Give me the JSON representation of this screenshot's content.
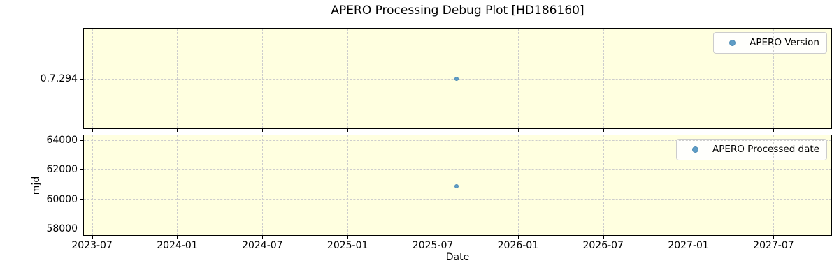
{
  "title": "APERO Processing Debug Plot [HD186160]",
  "colors": {
    "figure_bg": "#ffffff",
    "plot_bg": "#ffffe0",
    "marker": "#5f9dc6",
    "marker_edge": "#4e8cb5",
    "grid": "#cdcdcd",
    "spine": "#000000",
    "legend_border": "#cccccc"
  },
  "x_axis": {
    "label": "Date",
    "lim": [
      "2023-06-14",
      "2027-11-03"
    ],
    "ticks": [
      "2023-07",
      "2024-01",
      "2024-07",
      "2025-01",
      "2025-07",
      "2026-01",
      "2026-07",
      "2027-01",
      "2027-07"
    ],
    "grid": true
  },
  "chart_data": [
    {
      "type": "scatter",
      "panel": "apero-version",
      "series_label": "APERO Version",
      "legend_position": "upper right",
      "y_ticks": [
        {
          "label": "0.7.294",
          "frac": 0.503
        }
      ],
      "points": [
        {
          "date": "2025-08-22",
          "value_label": "0.7.294",
          "y_frac": 0.503
        }
      ]
    },
    {
      "type": "scatter",
      "panel": "apero-processed-date",
      "series_label": "APERO Processed date",
      "legend_position": "upper right",
      "ylabel": "mjd",
      "ylim": [
        57600,
        64320
      ],
      "y_ticks": [
        58000,
        60000,
        62000,
        64000
      ],
      "points": [
        {
          "date": "2025-08-22",
          "mjd": 60905
        }
      ]
    }
  ]
}
